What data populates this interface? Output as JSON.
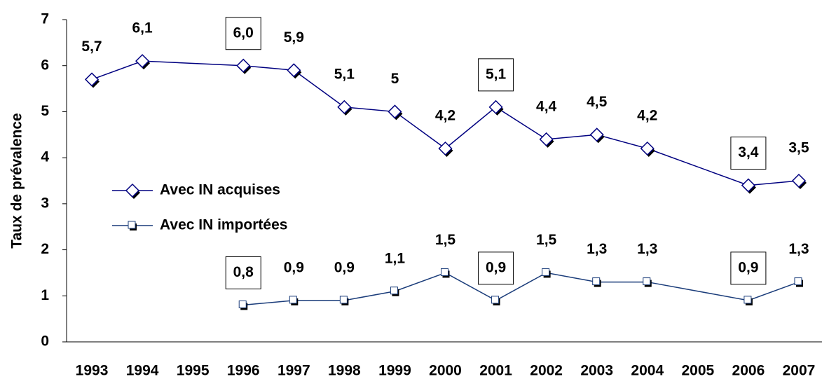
{
  "chart_data": {
    "type": "line",
    "y_label": "Taux de prévalence",
    "x": [
      1993,
      1994,
      1996,
      1997,
      1998,
      1999,
      2000,
      2001,
      2002,
      2003,
      2004,
      2006,
      2007
    ],
    "xlim": [
      1992.5,
      2007.5
    ],
    "xticks": [
      1993,
      1994,
      1995,
      1996,
      1997,
      1998,
      1999,
      2000,
      2001,
      2002,
      2003,
      2004,
      2005,
      2006,
      2007
    ],
    "ylim": [
      0,
      7
    ],
    "yticks": [
      0,
      1,
      2,
      3,
      4,
      5,
      6,
      7
    ],
    "legend": "left",
    "series": [
      {
        "name": "Avec IN acquises",
        "color": "#000080",
        "marker": "diamond",
        "values": [
          5.7,
          6.1,
          6.0,
          5.9,
          5.1,
          5,
          4.2,
          5.1,
          4.4,
          4.5,
          4.2,
          3.4,
          3.5
        ],
        "value_labels": [
          "5,7",
          "6,1",
          "6,0",
          "5,9",
          "5,1",
          "5",
          "4,2",
          "5,1",
          "4,4",
          "4,5",
          "4,2",
          "3,4",
          "3,5"
        ],
        "boxed_labels": [
          2,
          7,
          11
        ]
      },
      {
        "name": "Avec IN importées",
        "color": "#1a3c7a",
        "marker": "square",
        "values": [
          null,
          null,
          0.8,
          0.9,
          0.9,
          1.1,
          1.5,
          0.9,
          1.5,
          1.3,
          1.3,
          0.9,
          1.3
        ],
        "value_labels": [
          null,
          null,
          "0,8",
          "0,9",
          "0,9",
          "1,1",
          "1,5",
          "0,9",
          "1,5",
          "1,3",
          "1,3",
          "0,9",
          "1,3"
        ],
        "boxed_labels": [
          2,
          7,
          11
        ]
      }
    ]
  }
}
